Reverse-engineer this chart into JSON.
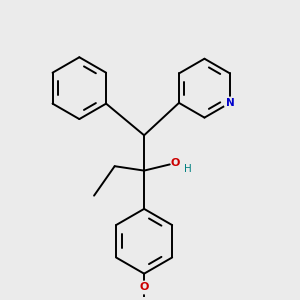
{
  "background_color": "#ebebeb",
  "bond_color": "#000000",
  "N_color": "#0000cc",
  "O_color": "#cc0000",
  "H_color": "#008080",
  "figsize": [
    3.0,
    3.0
  ],
  "dpi": 100,
  "xlim": [
    0,
    10
  ],
  "ylim": [
    0,
    10
  ]
}
